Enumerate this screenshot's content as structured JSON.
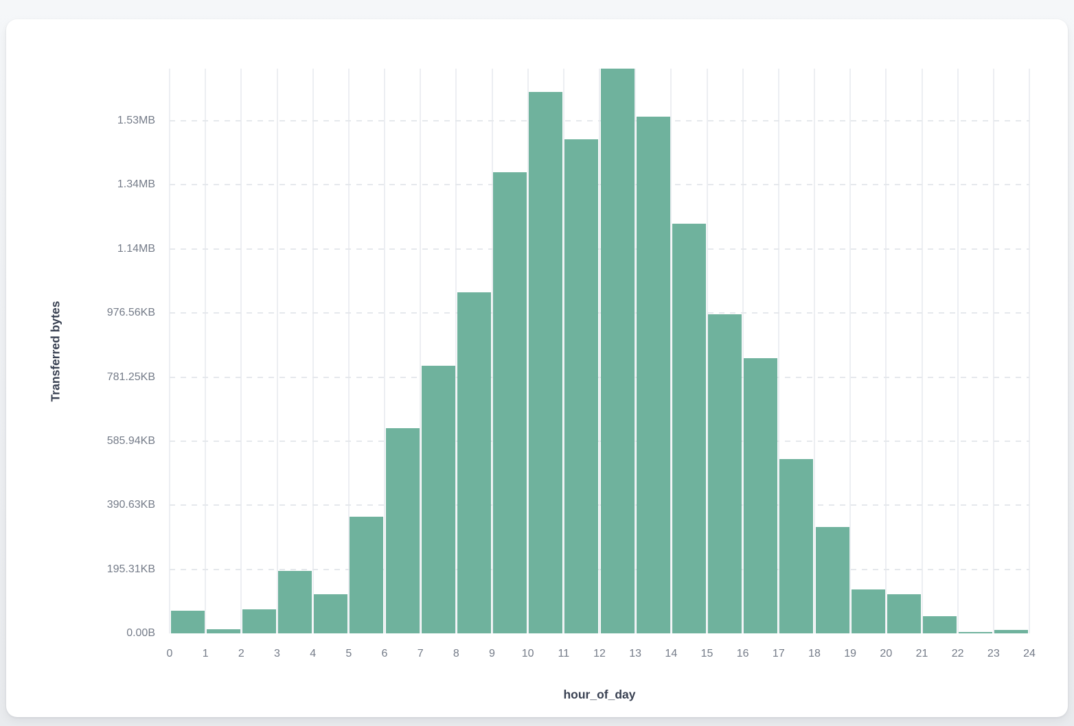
{
  "chart_data": {
    "type": "bar",
    "title": "",
    "xlabel": "hour_of_day",
    "ylabel": "Transferred bytes",
    "categories": [
      0,
      1,
      2,
      3,
      4,
      5,
      6,
      7,
      8,
      9,
      10,
      11,
      12,
      13,
      14,
      15,
      16,
      17,
      18,
      19,
      20,
      21,
      22,
      23
    ],
    "values": [
      70000,
      13000,
      75000,
      196000,
      122000,
      365000,
      640000,
      835000,
      1065000,
      1440000,
      1690000,
      1543000,
      1763000,
      1613000,
      1279000,
      996000,
      860000,
      544000,
      331000,
      137000,
      122000,
      54000,
      4000,
      10000
    ],
    "values_unit": "bytes",
    "x_ticks": [
      "0",
      "1",
      "2",
      "3",
      "4",
      "5",
      "6",
      "7",
      "8",
      "9",
      "10",
      "11",
      "12",
      "13",
      "14",
      "15",
      "16",
      "17",
      "18",
      "19",
      "20",
      "21",
      "22",
      "23",
      "24"
    ],
    "y_ticks": [
      {
        "label": "0.00B",
        "value": 0
      },
      {
        "label": "195.31KB",
        "value": 200000
      },
      {
        "label": "390.63KB",
        "value": 400000
      },
      {
        "label": "585.94KB",
        "value": 600000
      },
      {
        "label": "781.25KB",
        "value": 800000
      },
      {
        "label": "976.56KB",
        "value": 1000000
      },
      {
        "label": "1.14MB",
        "value": 1200000
      },
      {
        "label": "1.34MB",
        "value": 1400000
      },
      {
        "label": "1.53MB",
        "value": 1600000
      }
    ],
    "ylim": [
      0,
      1763000
    ],
    "bar_color": "#6FB29D",
    "grid": true,
    "legend": false
  }
}
